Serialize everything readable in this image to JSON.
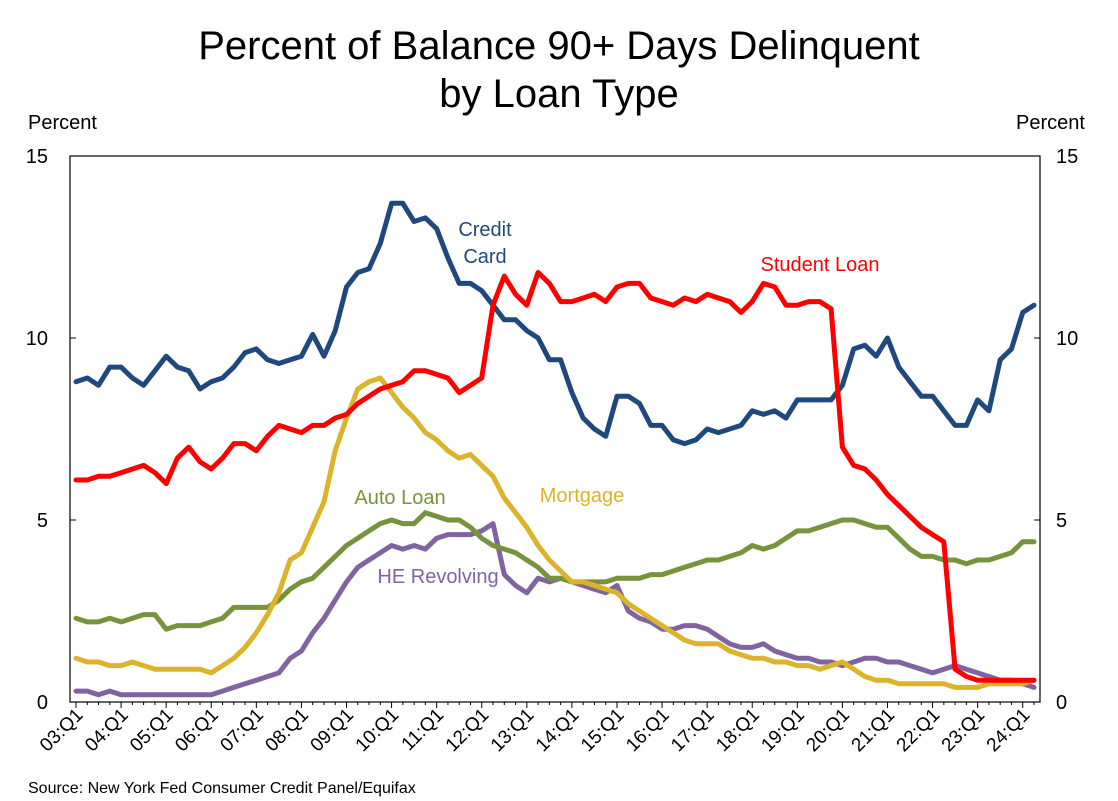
{
  "chart_data": {
    "type": "line",
    "title_line1": "Percent of Balance 90+ Days Delinquent",
    "title_line2": "by Loan Type",
    "ylabel_left": "Percent",
    "ylabel_right": "Percent",
    "source": "Source: New York Fed Consumer Credit Panel/Equifax",
    "ylim": [
      0,
      15
    ],
    "yticks": [
      0,
      5,
      10,
      15
    ],
    "x_start": "03:Q1",
    "x_end": "24:Q2",
    "xtick_labels": [
      "03:Q1",
      "04:Q1",
      "05:Q1",
      "06:Q1",
      "07:Q1",
      "08:Q1",
      "09:Q1",
      "10:Q1",
      "11:Q1",
      "12:Q1",
      "13:Q1",
      "14:Q1",
      "15:Q1",
      "16:Q1",
      "17:Q1",
      "18:Q1",
      "19:Q1",
      "20:Q1",
      "21:Q1",
      "22:Q1",
      "23:Q1",
      "24:Q1"
    ],
    "grid": false,
    "series": [
      {
        "name": "Credit Card",
        "label_lines": [
          "Credit",
          "Card"
        ],
        "color": "#1f497d",
        "values": [
          8.8,
          8.9,
          8.7,
          9.2,
          9.2,
          8.9,
          8.7,
          9.1,
          9.5,
          9.2,
          9.1,
          8.6,
          8.8,
          8.9,
          9.2,
          9.6,
          9.7,
          9.4,
          9.3,
          9.4,
          9.5,
          10.1,
          9.5,
          10.2,
          11.4,
          11.8,
          11.9,
          12.6,
          13.7,
          13.7,
          13.2,
          13.3,
          13.0,
          12.2,
          11.5,
          11.5,
          11.3,
          10.9,
          10.5,
          10.5,
          10.2,
          10.0,
          9.4,
          9.4,
          8.5,
          7.8,
          7.5,
          7.3,
          8.4,
          8.4,
          8.2,
          7.6,
          7.6,
          7.2,
          7.1,
          7.2,
          7.5,
          7.4,
          7.5,
          7.6,
          8.0,
          7.9,
          8.0,
          7.8,
          8.3,
          8.3,
          8.3,
          8.3,
          8.7,
          9.7,
          9.8,
          9.5,
          10.0,
          9.2,
          8.8,
          8.4,
          8.4,
          8.0,
          7.6,
          7.6,
          8.3,
          8.0,
          9.4,
          9.7,
          10.7,
          10.9
        ]
      },
      {
        "name": "Student Loan",
        "label_lines": [
          "Student Loan"
        ],
        "color": "#ff0000",
        "values": [
          6.1,
          6.1,
          6.2,
          6.2,
          6.3,
          6.4,
          6.5,
          6.3,
          6.0,
          6.7,
          7.0,
          6.6,
          6.4,
          6.7,
          7.1,
          7.1,
          6.9,
          7.3,
          7.6,
          7.5,
          7.4,
          7.6,
          7.6,
          7.8,
          7.9,
          8.2,
          8.4,
          8.6,
          8.7,
          8.8,
          9.1,
          9.1,
          9.0,
          8.9,
          8.5,
          8.7,
          8.9,
          10.9,
          11.7,
          11.2,
          10.9,
          11.8,
          11.5,
          11.0,
          11.0,
          11.1,
          11.2,
          11.0,
          11.4,
          11.5,
          11.5,
          11.1,
          11.0,
          10.9,
          11.1,
          11.0,
          11.2,
          11.1,
          11.0,
          10.7,
          11.0,
          11.5,
          11.4,
          10.9,
          10.9,
          11.0,
          11.0,
          10.8,
          7.0,
          6.5,
          6.4,
          6.1,
          5.7,
          5.4,
          5.1,
          4.8,
          4.6,
          4.4,
          0.9,
          0.7,
          0.6,
          0.6,
          0.6,
          0.6,
          0.6,
          0.6
        ]
      },
      {
        "name": "Mortgage",
        "label_lines": [
          "Mortgage"
        ],
        "color": "#dbb42c",
        "values": [
          1.2,
          1.1,
          1.1,
          1.0,
          1.0,
          1.1,
          1.0,
          0.9,
          0.9,
          0.9,
          0.9,
          0.9,
          0.8,
          1.0,
          1.2,
          1.5,
          1.9,
          2.4,
          3.0,
          3.9,
          4.1,
          4.8,
          5.5,
          6.9,
          7.8,
          8.6,
          8.8,
          8.9,
          8.5,
          8.1,
          7.8,
          7.4,
          7.2,
          6.9,
          6.7,
          6.8,
          6.5,
          6.2,
          5.6,
          5.2,
          4.8,
          4.3,
          3.9,
          3.6,
          3.3,
          3.3,
          3.2,
          3.1,
          3.0,
          2.7,
          2.5,
          2.3,
          2.1,
          1.9,
          1.7,
          1.6,
          1.6,
          1.6,
          1.4,
          1.3,
          1.2,
          1.2,
          1.1,
          1.1,
          1.0,
          1.0,
          0.9,
          1.0,
          1.1,
          0.9,
          0.7,
          0.6,
          0.6,
          0.5,
          0.5,
          0.5,
          0.5,
          0.5,
          0.4,
          0.4,
          0.4,
          0.5,
          0.5,
          0.5,
          0.5,
          0.6
        ]
      },
      {
        "name": "Auto Loan",
        "label_lines": [
          "Auto Loan"
        ],
        "color": "#77933c",
        "values": [
          2.3,
          2.2,
          2.2,
          2.3,
          2.2,
          2.3,
          2.4,
          2.4,
          2.0,
          2.1,
          2.1,
          2.1,
          2.2,
          2.3,
          2.6,
          2.6,
          2.6,
          2.6,
          2.8,
          3.1,
          3.3,
          3.4,
          3.7,
          4.0,
          4.3,
          4.5,
          4.7,
          4.9,
          5.0,
          4.9,
          4.9,
          5.2,
          5.1,
          5.0,
          5.0,
          4.8,
          4.5,
          4.3,
          4.2,
          4.1,
          3.9,
          3.7,
          3.4,
          3.4,
          3.3,
          3.3,
          3.3,
          3.3,
          3.4,
          3.4,
          3.4,
          3.5,
          3.5,
          3.6,
          3.7,
          3.8,
          3.9,
          3.9,
          4.0,
          4.1,
          4.3,
          4.2,
          4.3,
          4.5,
          4.7,
          4.7,
          4.8,
          4.9,
          5.0,
          5.0,
          4.9,
          4.8,
          4.8,
          4.5,
          4.2,
          4.0,
          4.0,
          3.9,
          3.9,
          3.8,
          3.9,
          3.9,
          4.0,
          4.1,
          4.4,
          4.4
        ]
      },
      {
        "name": "HE Revolving",
        "label_lines": [
          "HE Revolving"
        ],
        "color": "#8064a2",
        "values": [
          0.3,
          0.3,
          0.2,
          0.3,
          0.2,
          0.2,
          0.2,
          0.2,
          0.2,
          0.2,
          0.2,
          0.2,
          0.2,
          0.3,
          0.4,
          0.5,
          0.6,
          0.7,
          0.8,
          1.2,
          1.4,
          1.9,
          2.3,
          2.8,
          3.3,
          3.7,
          3.9,
          4.1,
          4.3,
          4.2,
          4.3,
          4.2,
          4.5,
          4.6,
          4.6,
          4.6,
          4.7,
          4.9,
          3.5,
          3.2,
          3.0,
          3.4,
          3.3,
          3.4,
          3.3,
          3.2,
          3.1,
          3.0,
          3.2,
          2.5,
          2.3,
          2.2,
          2.0,
          2.0,
          2.1,
          2.1,
          2.0,
          1.8,
          1.6,
          1.5,
          1.5,
          1.6,
          1.4,
          1.3,
          1.2,
          1.2,
          1.1,
          1.1,
          1.0,
          1.1,
          1.2,
          1.2,
          1.1,
          1.1,
          1.0,
          0.9,
          0.8,
          0.9,
          1.0,
          0.9,
          0.8,
          0.7,
          0.6,
          0.6,
          0.5,
          0.4
        ]
      }
    ]
  }
}
